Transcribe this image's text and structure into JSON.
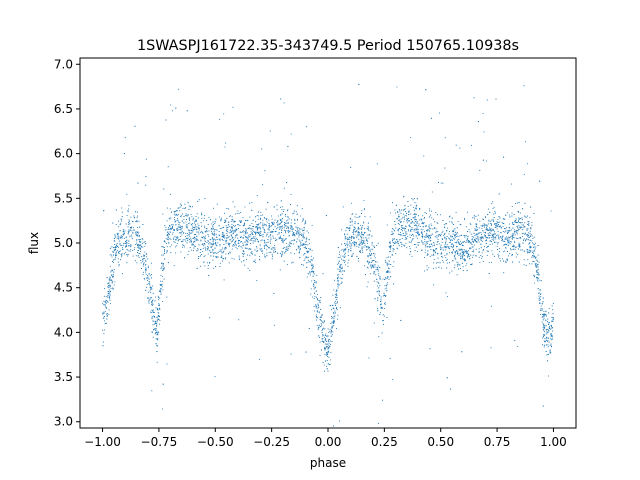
{
  "chart_data": {
    "type": "scatter",
    "title": "1SWASPJ161722.35-343749.5 Period 150765.10938s",
    "xlabel": "phase",
    "ylabel": "flux",
    "xlim": [
      -1.1,
      1.1
    ],
    "ylim": [
      2.93,
      7.07
    ],
    "x_ticks": [
      -1.0,
      -0.75,
      -0.5,
      -0.25,
      0.0,
      0.25,
      0.5,
      0.75,
      1.0
    ],
    "x_tick_labels": [
      "−1.00",
      "−0.75",
      "−0.50",
      "−0.25",
      "0.00",
      "0.25",
      "0.50",
      "0.75",
      "1.00"
    ],
    "y_ticks": [
      3.0,
      3.5,
      4.0,
      4.5,
      5.0,
      5.5,
      6.0,
      6.5,
      7.0
    ],
    "y_tick_labels": [
      "3.0",
      "3.5",
      "4.0",
      "4.5",
      "5.0",
      "5.5",
      "6.0",
      "6.5",
      "7.0"
    ],
    "grid": false,
    "legend": false,
    "marker_color": "#1f77b4",
    "series": [
      {
        "x": [
          -1.0,
          -0.98,
          -0.96,
          -0.94,
          -0.9,
          -0.85,
          -0.82,
          -0.8,
          -0.78,
          -0.76,
          -0.74,
          -0.72,
          -0.7,
          -0.65,
          -0.6,
          -0.55,
          -0.5,
          -0.45,
          -0.4,
          -0.35,
          -0.3,
          -0.25,
          -0.2,
          -0.15,
          -0.1,
          -0.07,
          -0.05,
          -0.03,
          -0.01,
          0.0,
          0.01,
          0.03,
          0.05,
          0.08,
          0.1,
          0.15,
          0.2,
          0.22,
          0.24,
          0.26,
          0.28,
          0.3,
          0.35,
          0.4,
          0.45,
          0.5,
          0.55,
          0.6,
          0.65,
          0.7,
          0.75,
          0.8,
          0.85,
          0.9,
          0.93,
          0.95,
          0.97,
          0.99,
          1.0
        ],
        "y": [
          4.1,
          4.35,
          4.7,
          4.95,
          5.05,
          5.1,
          4.85,
          4.6,
          4.3,
          4.0,
          4.6,
          5.0,
          5.15,
          5.2,
          5.15,
          5.05,
          5.0,
          5.05,
          5.1,
          5.05,
          5.1,
          5.1,
          5.15,
          5.1,
          5.0,
          4.7,
          4.35,
          4.05,
          3.85,
          3.85,
          3.95,
          4.25,
          4.65,
          4.95,
          5.05,
          5.1,
          4.85,
          4.55,
          4.2,
          4.6,
          5.0,
          5.15,
          5.2,
          5.15,
          5.05,
          5.0,
          5.05,
          4.9,
          5.05,
          5.1,
          5.1,
          5.1,
          5.1,
          5.05,
          4.65,
          4.2,
          3.9,
          4.0,
          4.15
        ]
      }
    ]
  }
}
